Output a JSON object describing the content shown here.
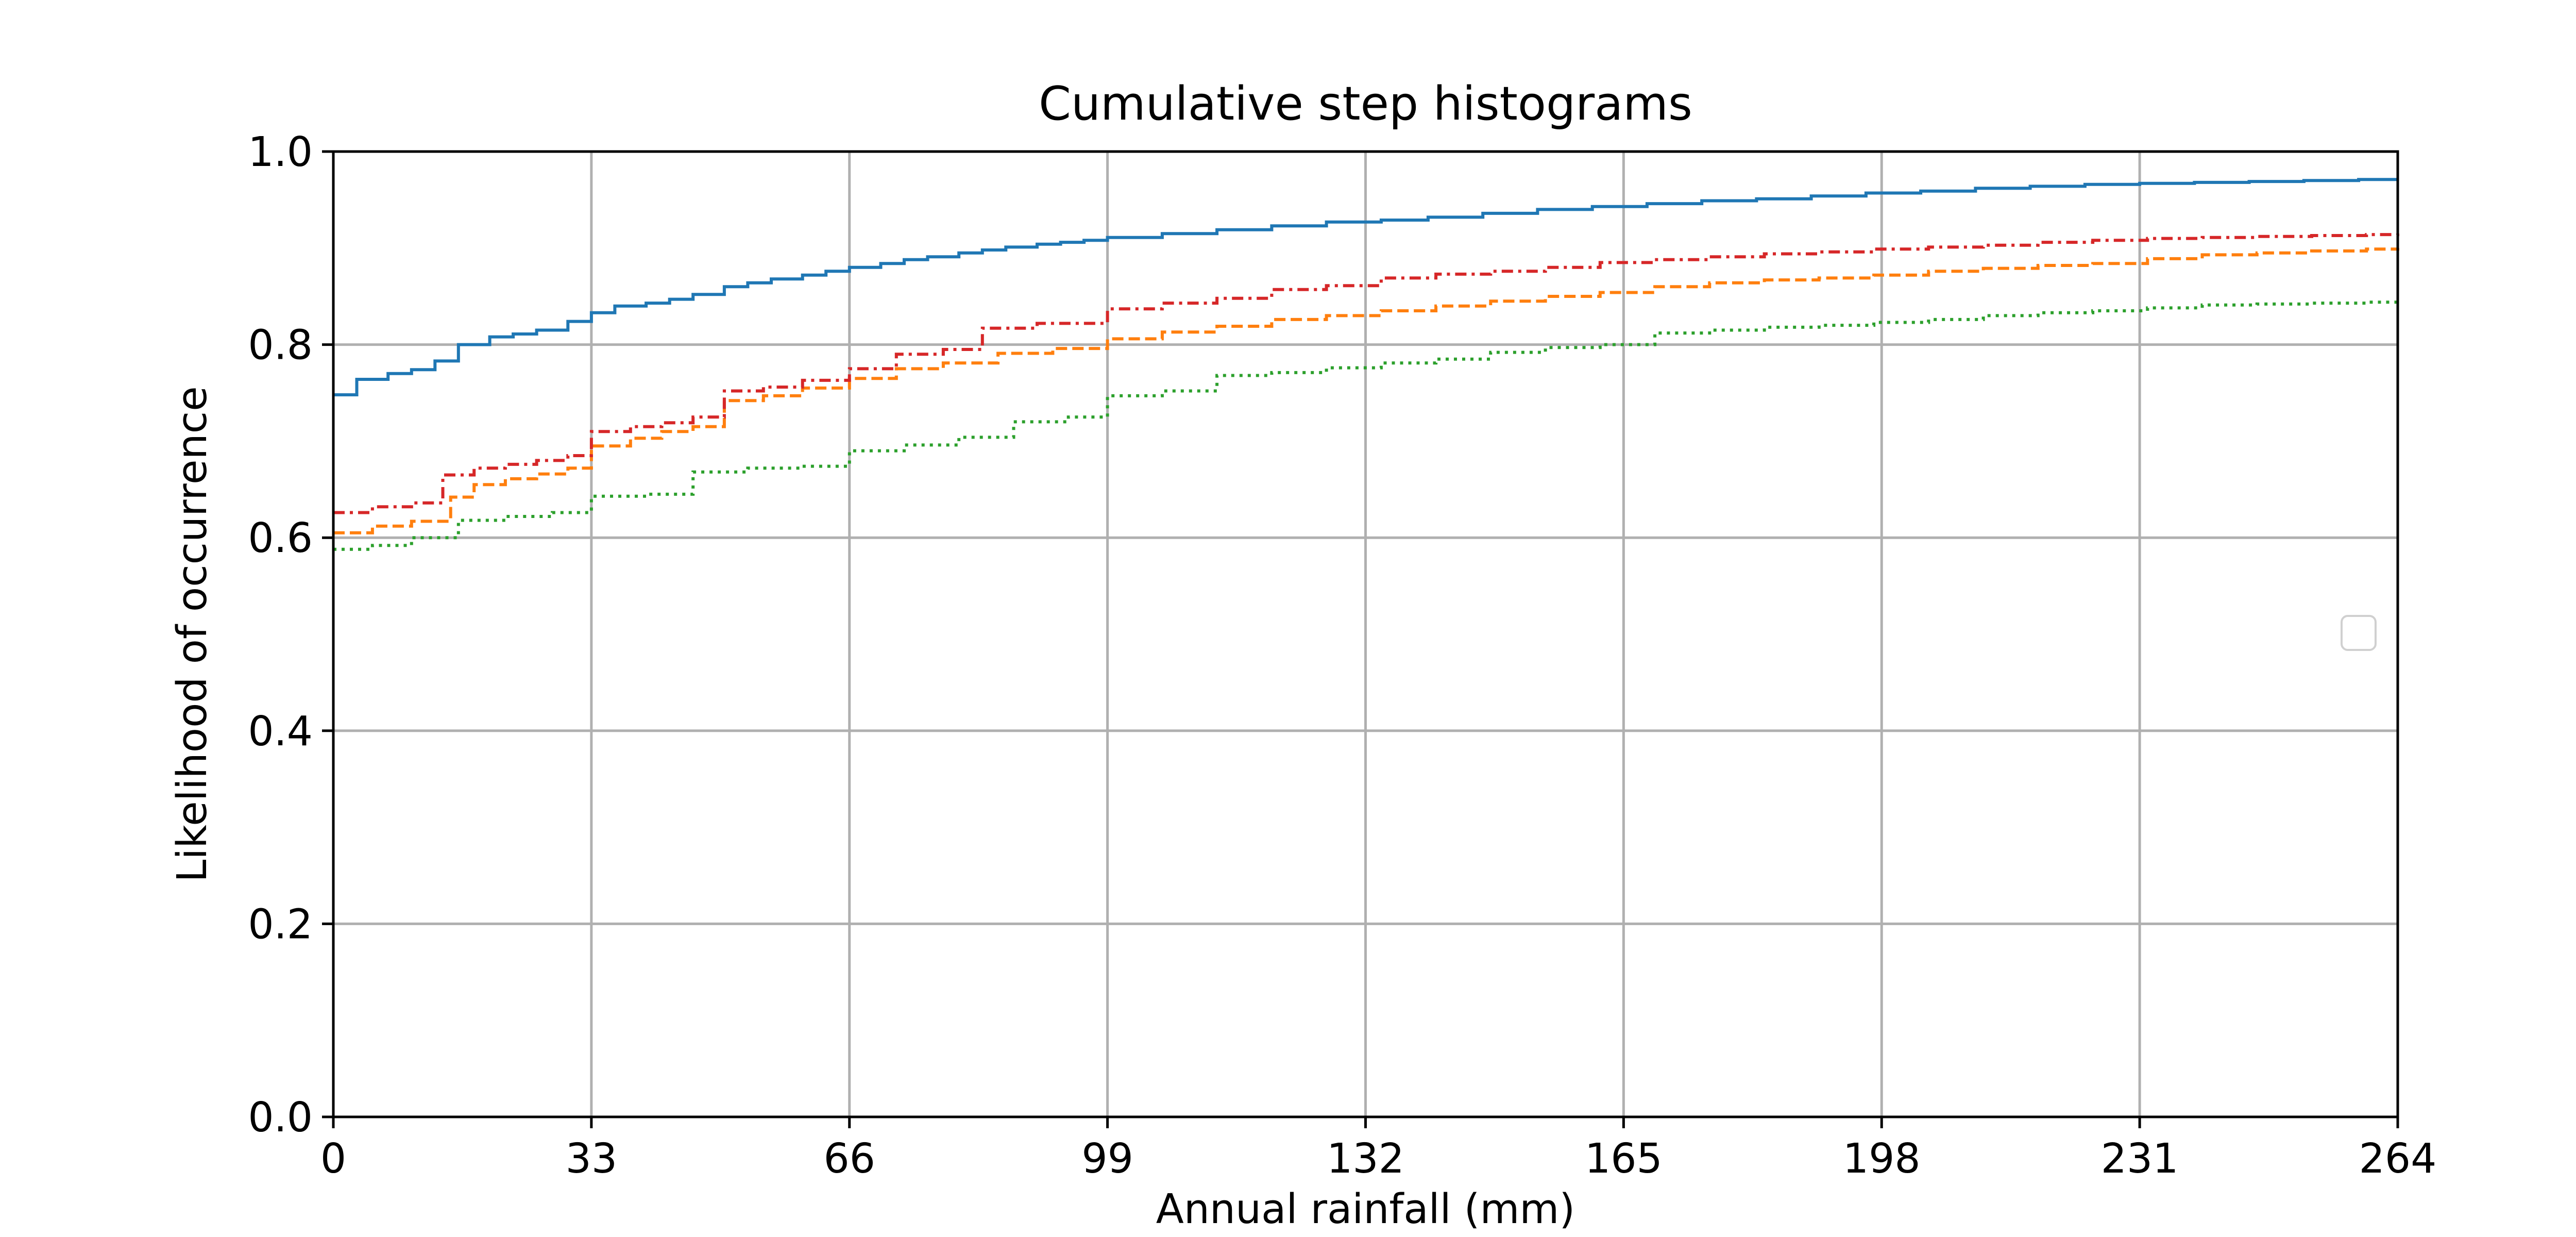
{
  "chart_data": {
    "type": "line",
    "title": "Cumulative step histograms",
    "xlabel": "Annual rainfall (mm)",
    "ylabel": "Likelihood of occurrence",
    "xlim": [
      0,
      264
    ],
    "ylim": [
      0,
      1
    ],
    "xticks": [
      0,
      33,
      66,
      99,
      132,
      165,
      198,
      231,
      264
    ],
    "yticks": [
      0,
      0.2,
      0.4,
      0.6,
      0.8,
      1.0
    ],
    "xtick_labels": [
      "0",
      "33",
      "66",
      "99",
      "132",
      "165",
      "198",
      "231",
      "264"
    ],
    "ytick_labels": [
      "0.0",
      "0.2",
      "0.4",
      "0.6",
      "0.8",
      "1.0"
    ],
    "grid": true,
    "legend": {
      "placement": "center-right",
      "entries": []
    },
    "series": [
      {
        "color": "#1f77b4",
        "dash": "solid",
        "x": [
          0,
          3,
          7,
          10,
          13,
          16,
          20,
          23,
          26,
          30,
          33,
          36,
          40,
          43,
          46,
          50,
          53,
          56,
          60,
          63,
          66,
          70,
          73,
          76,
          80,
          83,
          86,
          90,
          93,
          96,
          99,
          106,
          113,
          120,
          127,
          134,
          140,
          147,
          154,
          161,
          168,
          175,
          182,
          189,
          196,
          203,
          210,
          217,
          224,
          231,
          238,
          245,
          252,
          259,
          264
        ],
        "y": [
          0.748,
          0.764,
          0.77,
          0.774,
          0.783,
          0.8,
          0.808,
          0.811,
          0.815,
          0.824,
          0.833,
          0.84,
          0.843,
          0.847,
          0.852,
          0.86,
          0.864,
          0.868,
          0.872,
          0.876,
          0.88,
          0.884,
          0.888,
          0.891,
          0.895,
          0.898,
          0.901,
          0.904,
          0.906,
          0.908,
          0.911,
          0.915,
          0.919,
          0.923,
          0.927,
          0.929,
          0.932,
          0.936,
          0.94,
          0.943,
          0.946,
          0.949,
          0.951,
          0.954,
          0.957,
          0.959,
          0.962,
          0.964,
          0.966,
          0.967,
          0.968,
          0.969,
          0.97,
          0.971,
          0.971
        ]
      },
      {
        "color": "#ff7f0e",
        "dash": "dashed",
        "x": [
          0,
          5,
          10,
          15,
          18,
          22,
          26,
          30,
          33,
          38,
          42,
          46,
          50,
          55,
          60,
          66,
          72,
          78,
          85,
          92,
          99,
          106,
          113,
          120,
          127,
          134,
          141,
          148,
          155,
          162,
          169,
          176,
          183,
          190,
          197,
          204,
          211,
          218,
          225,
          232,
          239,
          246,
          253,
          260,
          264
        ],
        "y": [
          0.605,
          0.612,
          0.617,
          0.642,
          0.655,
          0.661,
          0.666,
          0.672,
          0.695,
          0.703,
          0.71,
          0.715,
          0.742,
          0.747,
          0.755,
          0.765,
          0.775,
          0.781,
          0.791,
          0.796,
          0.806,
          0.813,
          0.819,
          0.826,
          0.83,
          0.835,
          0.84,
          0.845,
          0.85,
          0.854,
          0.86,
          0.864,
          0.867,
          0.869,
          0.872,
          0.876,
          0.879,
          0.882,
          0.884,
          0.889,
          0.893,
          0.895,
          0.897,
          0.899,
          0.9
        ]
      },
      {
        "color": "#2ca02c",
        "dash": "dotted",
        "x": [
          0,
          5,
          10,
          16,
          22,
          28,
          33,
          40,
          46,
          53,
          60,
          66,
          73,
          80,
          87,
          94,
          99,
          106,
          113,
          120,
          127,
          134,
          141,
          148,
          155,
          162,
          169,
          176,
          183,
          190,
          197,
          204,
          211,
          218,
          225,
          232,
          239,
          246,
          253,
          260,
          264
        ],
        "y": [
          0.588,
          0.592,
          0.6,
          0.618,
          0.622,
          0.626,
          0.643,
          0.645,
          0.668,
          0.672,
          0.674,
          0.69,
          0.696,
          0.704,
          0.72,
          0.725,
          0.747,
          0.752,
          0.768,
          0.771,
          0.776,
          0.781,
          0.785,
          0.792,
          0.797,
          0.8,
          0.812,
          0.815,
          0.818,
          0.82,
          0.823,
          0.826,
          0.83,
          0.833,
          0.835,
          0.838,
          0.841,
          0.842,
          0.843,
          0.844,
          0.845
        ]
      },
      {
        "color": "#d62728",
        "dash": "dashdot",
        "x": [
          0,
          5,
          10,
          14,
          18,
          22,
          26,
          30,
          33,
          38,
          42,
          46,
          50,
          55,
          60,
          66,
          72,
          78,
          83,
          90,
          99,
          106,
          113,
          120,
          127,
          134,
          141,
          148,
          155,
          162,
          169,
          176,
          183,
          190,
          197,
          204,
          211,
          218,
          225,
          232,
          239,
          246,
          253,
          260,
          264
        ],
        "y": [
          0.626,
          0.632,
          0.636,
          0.665,
          0.672,
          0.676,
          0.68,
          0.685,
          0.71,
          0.715,
          0.719,
          0.725,
          0.752,
          0.756,
          0.763,
          0.775,
          0.79,
          0.795,
          0.817,
          0.822,
          0.837,
          0.843,
          0.848,
          0.857,
          0.861,
          0.869,
          0.873,
          0.876,
          0.88,
          0.885,
          0.888,
          0.891,
          0.894,
          0.896,
          0.899,
          0.901,
          0.903,
          0.906,
          0.908,
          0.91,
          0.911,
          0.912,
          0.913,
          0.914,
          0.915
        ]
      }
    ]
  }
}
